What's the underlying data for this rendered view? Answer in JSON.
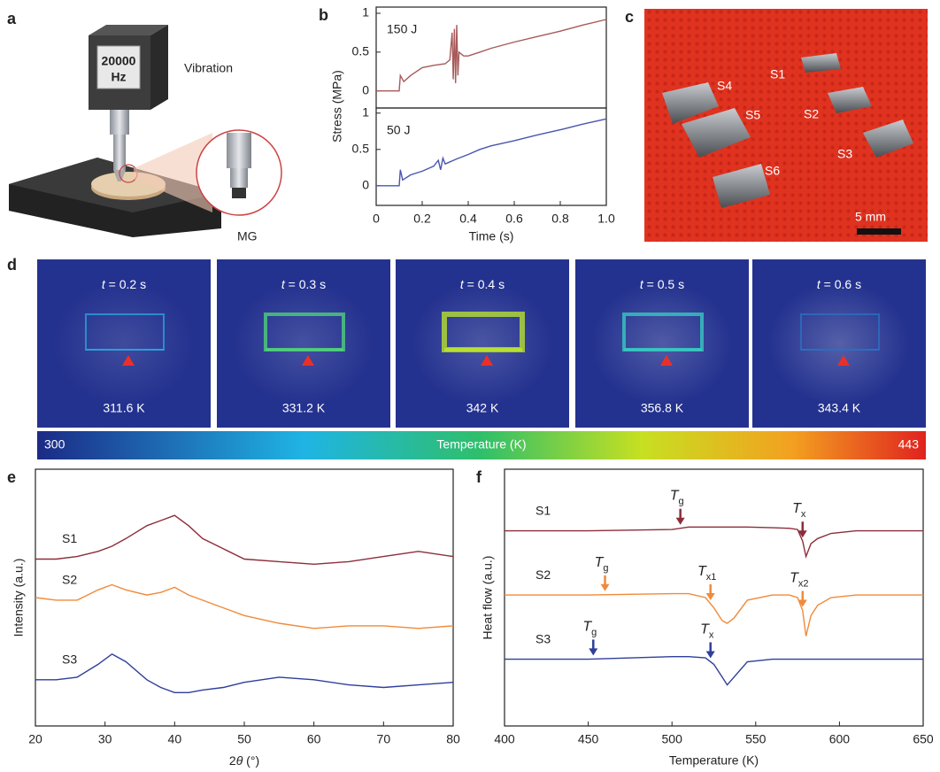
{
  "panel_labels": [
    "a",
    "b",
    "c",
    "d",
    "e",
    "f"
  ],
  "panel_a": {
    "display": "20000",
    "display_unit": "Hz",
    "vibration": "Vibration",
    "sample": "MG"
  },
  "panel_c": {
    "samples": [
      "S1",
      "S2",
      "S3",
      "S4",
      "S5",
      "S6"
    ],
    "scale_bar": "5 mm"
  },
  "panel_d": {
    "frames": [
      {
        "t": "t",
        "time": " = 0.2 s",
        "temperature": "311.6 K"
      },
      {
        "t": "t",
        "time": " = 0.3 s",
        "temperature": "331.2 K"
      },
      {
        "t": "t",
        "time": " = 0.4 s",
        "temperature": "342 K"
      },
      {
        "t": "t",
        "time": " = 0.5 s",
        "temperature": "356.8 K"
      },
      {
        "t": "t",
        "time": " = 0.6 s",
        "temperature": "343.4 K"
      }
    ],
    "colorbar": {
      "min": "300",
      "label": "Temperature (K)",
      "max": "443"
    }
  },
  "chart_data": [
    {
      "type": "line",
      "annotation": "150 J",
      "ylabel": "Stress (MPa)",
      "x": [
        0,
        0.1,
        0.105,
        0.12,
        0.15,
        0.2,
        0.25,
        0.3,
        0.32,
        0.33,
        0.335,
        0.34,
        0.345,
        0.35,
        0.355,
        0.36,
        0.38,
        0.4,
        0.45,
        0.5,
        0.6,
        0.7,
        0.8,
        0.9,
        1.0
      ],
      "series": [
        {
          "color": "#a85a5a",
          "values": [
            0,
            0,
            0.2,
            0.12,
            0.2,
            0.3,
            0.33,
            0.35,
            0.4,
            0.75,
            0.15,
            0.8,
            0.1,
            0.85,
            0.2,
            0.5,
            0.45,
            0.45,
            0.5,
            0.55,
            0.63,
            0.7,
            0.77,
            0.85,
            0.92
          ]
        }
      ],
      "xlim": [
        0,
        1
      ],
      "ylim": [
        -0.22,
        1.08
      ],
      "yticks": [
        0,
        0.5,
        1
      ]
    },
    {
      "type": "line",
      "annotation": "50 J",
      "xlabel": "Time (s)",
      "x": [
        0,
        0.1,
        0.105,
        0.115,
        0.15,
        0.2,
        0.25,
        0.27,
        0.28,
        0.29,
        0.3,
        0.35,
        0.4,
        0.45,
        0.5,
        0.6,
        0.7,
        0.8,
        0.9,
        1.0
      ],
      "series": [
        {
          "color": "#4a55b0",
          "values": [
            0,
            0,
            0.22,
            0.08,
            0.15,
            0.2,
            0.27,
            0.35,
            0.22,
            0.38,
            0.3,
            0.37,
            0.43,
            0.5,
            0.55,
            0.62,
            0.7,
            0.77,
            0.85,
            0.92
          ]
        }
      ],
      "xlim": [
        0,
        1
      ],
      "ylim": [
        -0.27,
        1.07
      ],
      "yticks": [
        0,
        0.5,
        1
      ],
      "xticks": [
        0,
        0.2,
        0.4,
        0.6,
        0.8,
        {
          "value": 1,
          "label": "1.0"
        }
      ]
    },
    {
      "type": "line",
      "xlabel": [
        "2",
        "θ",
        " (°)"
      ],
      "ylabel": "Intensity (a.u.)",
      "x": [
        20,
        23,
        26,
        29,
        31,
        33,
        36,
        38,
        40,
        42,
        44,
        47,
        50,
        55,
        60,
        65,
        70,
        75,
        80
      ],
      "series": [
        {
          "name": "S1",
          "color": "#8b2e3a",
          "values": [
            6.5,
            6.5,
            6.6,
            6.8,
            7.0,
            7.3,
            7.8,
            8.0,
            8.2,
            7.8,
            7.3,
            6.9,
            6.5,
            6.4,
            6.3,
            6.4,
            6.6,
            6.8,
            6.6
          ]
        },
        {
          "name": "S2",
          "color": "#f08a3a",
          "values": [
            5.0,
            4.9,
            4.9,
            5.3,
            5.5,
            5.3,
            5.1,
            5.2,
            5.4,
            5.1,
            4.9,
            4.6,
            4.3,
            4.0,
            3.8,
            3.9,
            3.9,
            3.8,
            3.9
          ]
        },
        {
          "name": "S3",
          "color": "#2f3f9a",
          "values": [
            1.8,
            1.8,
            1.9,
            2.4,
            2.8,
            2.5,
            1.8,
            1.5,
            1.3,
            1.3,
            1.4,
            1.5,
            1.7,
            1.9,
            1.8,
            1.6,
            1.5,
            1.6,
            1.7
          ]
        }
      ],
      "xlim": [
        20,
        80
      ],
      "ylim": [
        0,
        10
      ],
      "xticks": [
        20,
        30,
        40,
        50,
        60,
        70,
        80
      ]
    },
    {
      "type": "line",
      "xlabel": "Temperature (K)",
      "ylabel": "Heat flow (a.u.)",
      "x": [
        400,
        450,
        500,
        510,
        520,
        525,
        530,
        533,
        537,
        545,
        560,
        570,
        575,
        578,
        580,
        583,
        587,
        595,
        610,
        650
      ],
      "series": [
        {
          "name": "S1",
          "color": "#8b2e3a",
          "values": [
            7.6,
            7.6,
            7.65,
            7.75,
            7.75,
            7.75,
            7.75,
            7.75,
            7.75,
            7.75,
            7.72,
            7.7,
            7.65,
            7.2,
            6.6,
            7.1,
            7.3,
            7.5,
            7.6,
            7.6
          ]
        },
        {
          "name": "S2",
          "color": "#f08a3a",
          "values": [
            5.1,
            5.1,
            5.15,
            5.15,
            5.0,
            4.6,
            4.1,
            4.0,
            4.2,
            4.9,
            5.1,
            5.1,
            5.0,
            4.5,
            3.5,
            4.3,
            4.7,
            5.0,
            5.1,
            5.1
          ]
        },
        {
          "name": "S3",
          "color": "#2f3f9a",
          "values": [
            2.6,
            2.6,
            2.7,
            2.7,
            2.65,
            2.4,
            1.9,
            1.6,
            1.9,
            2.5,
            2.6,
            2.6,
            2.6,
            2.6,
            2.6,
            2.6,
            2.6,
            2.6,
            2.6,
            2.6
          ]
        }
      ],
      "annotations": [
        {
          "series": 0,
          "x": 505,
          "symbol": "T",
          "subscript": "g"
        },
        {
          "series": 0,
          "x": 578,
          "symbol": "T",
          "subscript": "x"
        },
        {
          "series": 1,
          "x": 460,
          "symbol": "T",
          "subscript": "g"
        },
        {
          "series": 1,
          "x": 523,
          "symbol": "T",
          "subscript": "x1"
        },
        {
          "series": 1,
          "x": 578,
          "symbol": "T",
          "subscript": "x2"
        },
        {
          "series": 2,
          "x": 453,
          "symbol": "T",
          "subscript": "g"
        },
        {
          "series": 2,
          "x": 523,
          "symbol": "T",
          "subscript": "x"
        }
      ],
      "xlim": [
        400,
        650
      ],
      "ylim": [
        0,
        10
      ],
      "xticks": [
        400,
        450,
        500,
        550,
        600,
        650
      ]
    }
  ]
}
